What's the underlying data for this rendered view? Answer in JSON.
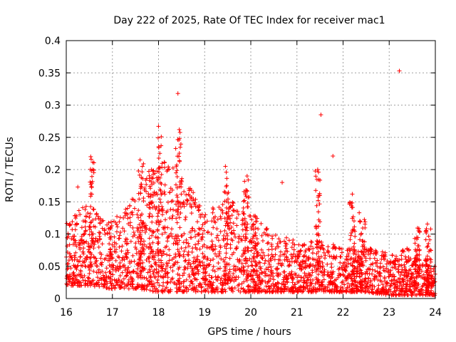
{
  "chart_data": {
    "type": "scatter",
    "title": "Day 222 of 2025, Rate Of TEC Index for receiver mac1",
    "xlabel": "GPS time / hours",
    "ylabel": "ROTI / TECUs",
    "xlim": [
      16,
      24
    ],
    "ylim": [
      0,
      0.4
    ],
    "x_ticks": [
      "16",
      "17",
      "18",
      "19",
      "20",
      "21",
      "22",
      "23",
      "24"
    ],
    "y_ticks": [
      "0",
      "0.05",
      "0.1",
      "0.15",
      "0.2",
      "0.25",
      "0.3",
      "0.35",
      "0.4"
    ],
    "grid": true,
    "marker": "+",
    "color": "#ff0000",
    "series": [
      {
        "name": "ROTI",
        "notable_points": [
          {
            "x": 18.42,
            "y": 0.318
          },
          {
            "x": 21.52,
            "y": 0.285
          },
          {
            "x": 23.22,
            "y": 0.353
          },
          {
            "x": 21.78,
            "y": 0.221
          },
          {
            "x": 18.0,
            "y": 0.267
          },
          {
            "x": 18.45,
            "y": 0.262
          },
          {
            "x": 16.53,
            "y": 0.22
          },
          {
            "x": 17.6,
            "y": 0.215
          },
          {
            "x": 19.45,
            "y": 0.205
          },
          {
            "x": 19.92,
            "y": 0.19
          },
          {
            "x": 21.45,
            "y": 0.2
          },
          {
            "x": 22.2,
            "y": 0.162
          },
          {
            "x": 22.35,
            "y": 0.133
          },
          {
            "x": 20.68,
            "y": 0.18
          },
          {
            "x": 16.25,
            "y": 0.173
          }
        ],
        "envelope": [
          {
            "x": 16.0,
            "low": 0.02,
            "high": 0.12
          },
          {
            "x": 16.5,
            "low": 0.02,
            "high": 0.15
          },
          {
            "x": 17.0,
            "low": 0.015,
            "high": 0.12
          },
          {
            "x": 17.5,
            "low": 0.015,
            "high": 0.16
          },
          {
            "x": 18.0,
            "low": 0.01,
            "high": 0.22
          },
          {
            "x": 18.5,
            "low": 0.01,
            "high": 0.2
          },
          {
            "x": 19.0,
            "low": 0.01,
            "high": 0.13
          },
          {
            "x": 19.5,
            "low": 0.01,
            "high": 0.16
          },
          {
            "x": 20.0,
            "low": 0.01,
            "high": 0.13
          },
          {
            "x": 20.5,
            "low": 0.01,
            "high": 0.1
          },
          {
            "x": 21.0,
            "low": 0.01,
            "high": 0.09
          },
          {
            "x": 21.5,
            "low": 0.01,
            "high": 0.09
          },
          {
            "x": 22.0,
            "low": 0.01,
            "high": 0.08
          },
          {
            "x": 22.5,
            "low": 0.01,
            "high": 0.08
          },
          {
            "x": 23.0,
            "low": 0.005,
            "high": 0.07
          },
          {
            "x": 23.5,
            "low": 0.005,
            "high": 0.08
          },
          {
            "x": 24.0,
            "low": 0.005,
            "high": 0.05
          }
        ]
      }
    ]
  }
}
